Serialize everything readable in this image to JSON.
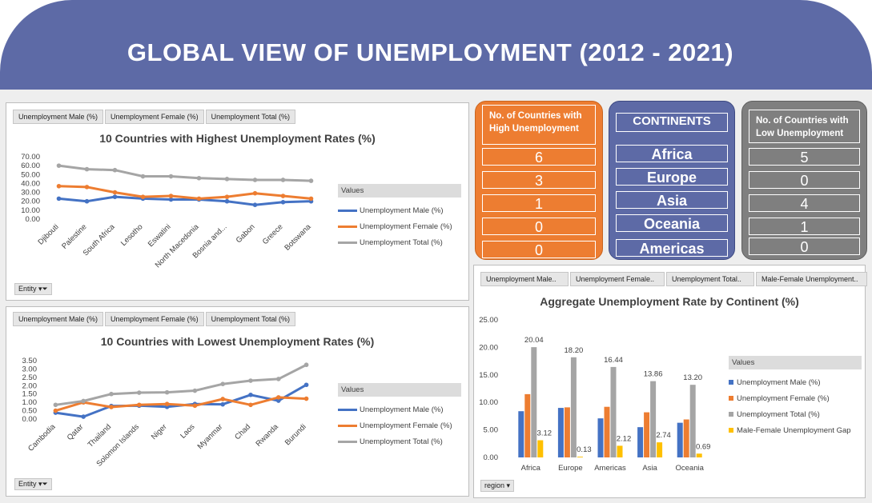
{
  "title": "GLOBAL VIEW OF UNEMPLOYMENT (2012 - 2021)",
  "colors": {
    "male": "#4472c4",
    "female": "#ed7d31",
    "total": "#a5a5a5",
    "gap": "#ffc000",
    "banner": "#5d6aa6",
    "orange": "#ed7d31",
    "grey": "#7f7f7f"
  },
  "slicers_top": [
    "Unemployment Male (%)",
    "Unemployment Female (%)",
    "Unemployment Total (%)"
  ],
  "slicers_right": [
    "Unemployment Male..",
    "Unemployment Female..",
    "Unemployment Total..",
    "Male-Female Unemployment.."
  ],
  "entity_label": "Entity",
  "region_label": "region",
  "legend_title": "Values",
  "high_chart": {
    "title": "10 Countries with Highest Unemployment Rates (%)",
    "categories": [
      "Djibouti",
      "Palestine",
      "South Africa",
      "Lesotho",
      "Eswatini",
      "North Macedonia",
      "Bosnia and...",
      "Gabon",
      "Greece",
      "Botswana"
    ],
    "ylim": [
      0,
      70
    ],
    "yticks": [
      "0.00",
      "10.00",
      "20.00",
      "30.00",
      "40.00",
      "50.00",
      "60.00",
      "70.00"
    ],
    "series": [
      {
        "name": "Unemployment Male (%)",
        "values": [
          23,
          20,
          25,
          23,
          22,
          22,
          20,
          16,
          19,
          20
        ]
      },
      {
        "name": "Unemployment Female (%)",
        "values": [
          37,
          36,
          30,
          25,
          26,
          23,
          25,
          29,
          26,
          23
        ]
      },
      {
        "name": "Unemployment Total (%)",
        "values": [
          60,
          56,
          55,
          48,
          48,
          46,
          45,
          44,
          44,
          43
        ]
      }
    ]
  },
  "low_chart": {
    "title": "10 Countries with Lowest Unemployment Rates (%)",
    "categories": [
      "Cambodia",
      "Qatar",
      "Thailand",
      "Solomon Islands",
      "Niger",
      "Laos",
      "Myanmar",
      "Chad",
      "Rwanda",
      "Burundi"
    ],
    "ylim": [
      0,
      3.5
    ],
    "yticks": [
      "0.00",
      "0.50",
      "1.00",
      "1.50",
      "2.00",
      "2.50",
      "3.00",
      "3.50"
    ],
    "series": [
      {
        "name": "Unemployment Male (%)",
        "values": [
          0.38,
          0.14,
          0.78,
          0.8,
          0.73,
          0.9,
          0.88,
          1.45,
          1.1,
          2.05
        ]
      },
      {
        "name": "Unemployment Female (%)",
        "values": [
          0.5,
          1.0,
          0.72,
          0.85,
          0.9,
          0.8,
          1.2,
          0.85,
          1.3,
          1.22
        ]
      },
      {
        "name": "Unemployment Total (%)",
        "values": [
          0.85,
          1.08,
          1.5,
          1.58,
          1.6,
          1.7,
          2.1,
          2.3,
          2.4,
          3.25
        ]
      }
    ]
  },
  "continent_chart": {
    "title": "Aggregate Unemployment Rate by Continent (%)",
    "categories": [
      "Africa",
      "Europe",
      "Americas",
      "Asia",
      "Oceania"
    ],
    "ylim": [
      0,
      25
    ],
    "yticks": [
      "0.00",
      "5.00",
      "10.00",
      "15.00",
      "20.00",
      "25.00"
    ],
    "series": [
      {
        "name": "Unemployment Male (%)",
        "values": [
          8.4,
          9.0,
          7.1,
          5.5,
          6.3
        ]
      },
      {
        "name": "Unemployment Female (%)",
        "values": [
          11.5,
          9.1,
          9.2,
          8.2,
          6.9
        ]
      },
      {
        "name": "Unemployment Total (%)",
        "values": [
          20.04,
          18.2,
          16.44,
          13.86,
          13.2
        ]
      },
      {
        "name": "Male-Female Unemployment Gap",
        "values": [
          3.12,
          0.13,
          2.12,
          2.74,
          0.69
        ]
      }
    ],
    "labeled": {
      "total": [
        "20.04",
        "18.20",
        "16.44",
        "13.86",
        "13.20"
      ],
      "gap": [
        "3.12",
        "0.13",
        "2.12",
        "2.74",
        "0.69"
      ]
    }
  },
  "kpi_high": {
    "header": "No. of Countries with High Unemployment",
    "values": [
      "6",
      "3",
      "1",
      "0",
      "0"
    ]
  },
  "continents": {
    "header": "CONTINENTS",
    "names": [
      "Africa",
      "Europe",
      "Asia",
      "Oceania",
      "Americas"
    ]
  },
  "kpi_low": {
    "header": "No. of Countries with Low Unemployment",
    "values": [
      "5",
      "0",
      "4",
      "1",
      "0"
    ]
  }
}
